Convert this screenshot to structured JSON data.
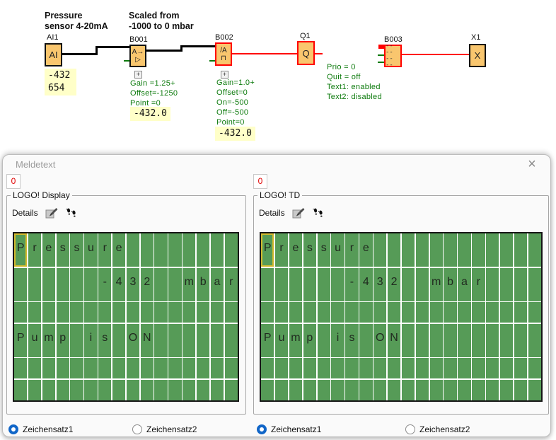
{
  "colors": {
    "wire_black": "#000000",
    "wire_red": "#ff0000",
    "block_fill": "#f9c66e",
    "param_green": "#0c7a0c",
    "value_highlight_bg": "#ffffc8",
    "display_green": "#569b57",
    "cursor_yellow": "#d2b92d",
    "radio_blue": "#1166c8",
    "tab_number_red": "#e00000"
  },
  "diagram": {
    "comments": [
      {
        "text": "Pressure\nsensor 4-20mA"
      },
      {
        "text": "Scaled from\n-1000 to 0 mbar"
      }
    ],
    "blocks": {
      "ai1": {
        "label": "AI1",
        "symbol": "AI"
      },
      "b001": {
        "label": "B001",
        "symbol_top": "A→",
        "symbol_bottom": "▷"
      },
      "b002": {
        "label": "B002",
        "symbol_top": "/A",
        "symbol_bottom": "⊓"
      },
      "q1": {
        "label": "Q1",
        "symbol": "Q"
      },
      "b003": {
        "label": "B003",
        "symbol_top": "-- --",
        "symbol_bottom": "-- --"
      },
      "x1": {
        "label": "X1",
        "symbol": "X"
      }
    },
    "values": {
      "ai1": "-432\n654",
      "b001": "-432.0",
      "b002": "-432.0"
    },
    "params": {
      "b001": [
        "Gain =1.25+",
        "Offset=-1250",
        "Point =0"
      ],
      "b002": [
        "Gain=1.0+",
        "Offset=0",
        "On=-500",
        "Off=-500",
        "Point=0"
      ],
      "b003": [
        "Prio = 0",
        "Quit = off",
        "Text1: enabled",
        "Text2: disabled"
      ]
    },
    "expander_glyph": "+"
  },
  "dialog": {
    "title": "Meldetext",
    "close_glyph": "×",
    "panels": [
      {
        "tab": "0",
        "group_label": "LOGO! Display",
        "details_label": "Details",
        "cols": 16,
        "rows": [
          "Pressure",
          "      -432  mbar",
          "",
          "Pump is ON",
          "",
          ""
        ],
        "cursor": {
          "row": 0,
          "col": 0
        },
        "charsets": [
          {
            "label": "Zeichensatz1",
            "selected": true
          },
          {
            "label": "Zeichensatz2",
            "selected": false
          }
        ]
      },
      {
        "tab": "0",
        "group_label": "LOGO! TD",
        "details_label": "Details",
        "cols": 20,
        "rows": [
          "Pressure",
          "      -432  mbar",
          "",
          "Pump is ON",
          "",
          ""
        ],
        "cursor": {
          "row": 0,
          "col": 0
        },
        "charsets": [
          {
            "label": "Zeichensatz1",
            "selected": true
          },
          {
            "label": "Zeichensatz2",
            "selected": false
          }
        ]
      }
    ]
  }
}
